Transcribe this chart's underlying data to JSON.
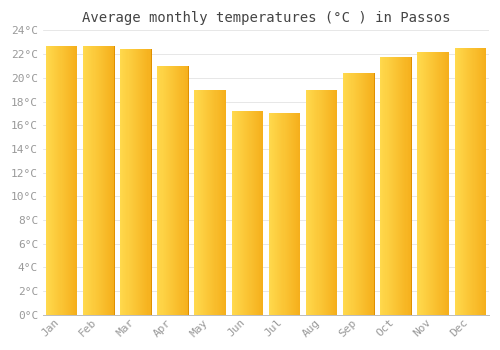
{
  "title": "Average monthly temperatures (°C ) in Passos",
  "months": [
    "Jan",
    "Feb",
    "Mar",
    "Apr",
    "May",
    "Jun",
    "Jul",
    "Aug",
    "Sep",
    "Oct",
    "Nov",
    "Dec"
  ],
  "values": [
    22.7,
    22.7,
    22.4,
    21.0,
    19.0,
    17.2,
    17.0,
    19.0,
    20.4,
    21.8,
    22.2,
    22.5
  ],
  "bar_color_left": "#FFCC44",
  "bar_color_right": "#F5A800",
  "bar_color_main": "#FDB827",
  "ylim": [
    0,
    24
  ],
  "ytick_step": 2,
  "background_color": "#FFFFFF",
  "grid_color": "#DDDDDD",
  "title_fontsize": 10,
  "tick_fontsize": 8,
  "tick_label_color": "#999999",
  "title_color": "#444444",
  "bar_width": 0.85
}
